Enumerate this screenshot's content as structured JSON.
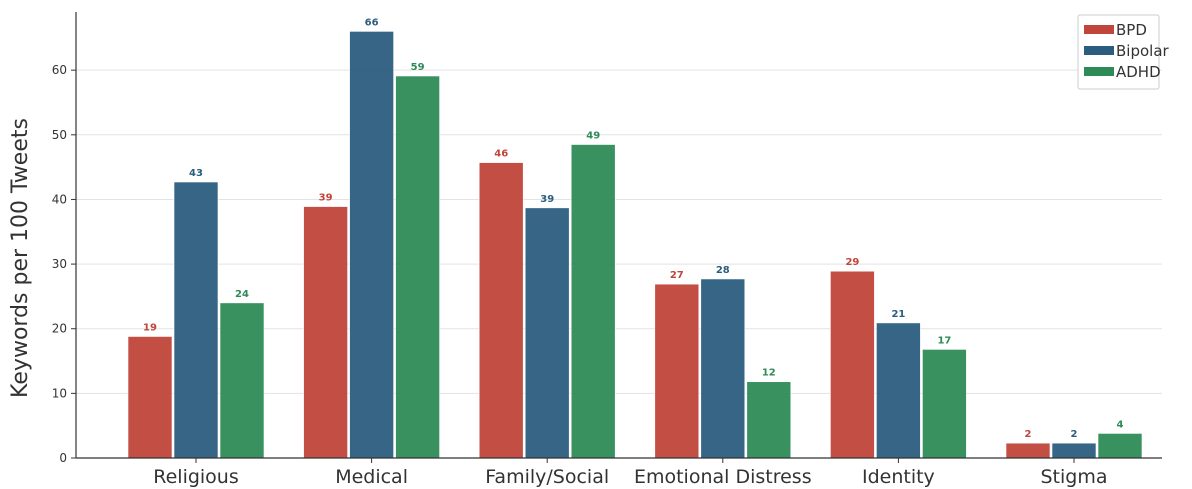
{
  "chart_data": {
    "type": "bar",
    "title": "",
    "xlabel": "",
    "ylabel": "Keywords per 100 Tweets",
    "ylim": [
      0,
      69
    ],
    "yticks": [
      0,
      10,
      20,
      30,
      40,
      50,
      60
    ],
    "grid": true,
    "legend_position": "top-right",
    "categories": [
      "Religious",
      "Medical",
      "Family/Social",
      "Emotional Distress",
      "Identity",
      "Stigma"
    ],
    "series": [
      {
        "name": "BPD",
        "color": "#c0453a",
        "values": [
          19,
          39,
          46,
          27,
          29,
          2
        ],
        "exact": [
          18.8,
          38.9,
          45.7,
          26.9,
          28.9,
          2.3
        ]
      },
      {
        "name": "Bipolar",
        "color": "#2b5d7e",
        "values": [
          43,
          66,
          39,
          28,
          21,
          2
        ],
        "exact": [
          42.7,
          66.0,
          38.7,
          27.7,
          20.9,
          2.3
        ]
      },
      {
        "name": "ADHD",
        "color": "#2e8b57",
        "values": [
          24,
          59,
          49,
          12,
          17,
          4
        ],
        "exact": [
          24.0,
          59.1,
          48.5,
          11.8,
          16.8,
          3.8
        ]
      }
    ]
  }
}
